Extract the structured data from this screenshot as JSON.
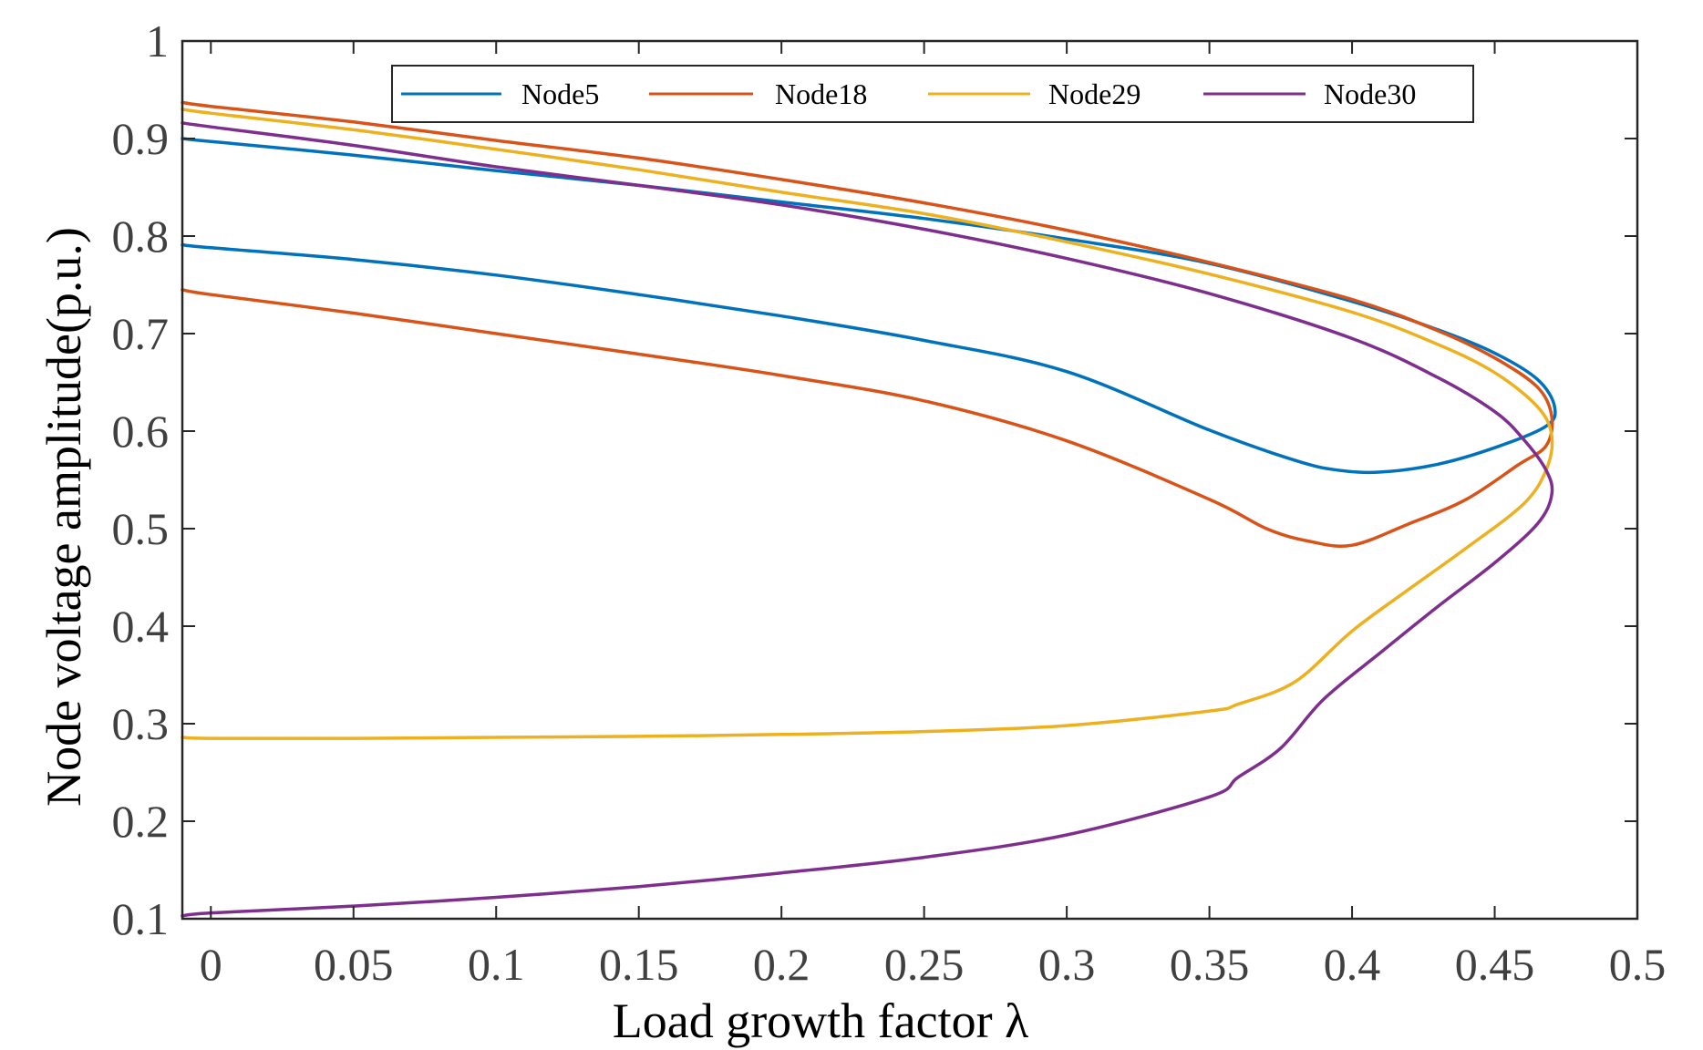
{
  "chart_data": {
    "type": "line",
    "title": "",
    "xlabel": "Load growth factor λ",
    "ylabel": "Node voltage amplitude(p.u.)",
    "xlim": [
      -0.01,
      0.5
    ],
    "ylim": [
      0.1,
      1.0
    ],
    "xticks": [
      0,
      0.05,
      0.1,
      0.15,
      0.2,
      0.25,
      0.3,
      0.35,
      0.4,
      0.45,
      0.5
    ],
    "xtick_labels": [
      "0",
      "0.05",
      "0.1",
      "0.15",
      "0.2",
      "0.25",
      "0.3",
      "0.35",
      "0.4",
      "0.45",
      "0.5"
    ],
    "yticks": [
      0.1,
      0.2,
      0.3,
      0.4,
      0.5,
      0.6,
      0.7,
      0.8,
      0.9,
      1.0
    ],
    "ytick_labels": [
      "0.1",
      "0.2",
      "0.3",
      "0.4",
      "0.5",
      "0.6",
      "0.7",
      "0.8",
      "0.9",
      "1"
    ],
    "grid": false,
    "legend_position": "top",
    "series": [
      {
        "name": "Node5",
        "color": "#0072BD",
        "points": [
          [
            -0.01,
            0.9
          ],
          [
            0.0,
            0.897
          ],
          [
            0.05,
            0.883
          ],
          [
            0.1,
            0.867
          ],
          [
            0.15,
            0.852
          ],
          [
            0.2,
            0.835
          ],
          [
            0.25,
            0.818
          ],
          [
            0.3,
            0.797
          ],
          [
            0.35,
            0.772
          ],
          [
            0.4,
            0.733
          ],
          [
            0.43,
            0.704
          ],
          [
            0.45,
            0.68
          ],
          [
            0.465,
            0.653
          ],
          [
            0.471,
            0.625
          ],
          [
            0.468,
            0.605
          ],
          [
            0.45,
            0.583
          ],
          [
            0.43,
            0.566
          ],
          [
            0.41,
            0.558
          ],
          [
            0.395,
            0.56
          ],
          [
            0.38,
            0.57
          ],
          [
            0.35,
            0.601
          ],
          [
            0.3,
            0.661
          ],
          [
            0.25,
            0.693
          ],
          [
            0.2,
            0.718
          ],
          [
            0.15,
            0.74
          ],
          [
            0.1,
            0.76
          ],
          [
            0.05,
            0.776
          ],
          [
            0.0,
            0.788
          ],
          [
            -0.01,
            0.791
          ]
        ]
      },
      {
        "name": "Node18",
        "color": "#D95319",
        "points": [
          [
            -0.01,
            0.937
          ],
          [
            0.0,
            0.933
          ],
          [
            0.05,
            0.917
          ],
          [
            0.1,
            0.898
          ],
          [
            0.15,
            0.88
          ],
          [
            0.2,
            0.858
          ],
          [
            0.25,
            0.834
          ],
          [
            0.3,
            0.806
          ],
          [
            0.35,
            0.773
          ],
          [
            0.4,
            0.735
          ],
          [
            0.43,
            0.703
          ],
          [
            0.45,
            0.675
          ],
          [
            0.465,
            0.645
          ],
          [
            0.47,
            0.615
          ],
          [
            0.468,
            0.585
          ],
          [
            0.458,
            0.565
          ],
          [
            0.44,
            0.53
          ],
          [
            0.42,
            0.505
          ],
          [
            0.4,
            0.483
          ],
          [
            0.385,
            0.487
          ],
          [
            0.37,
            0.5
          ],
          [
            0.35,
            0.53
          ],
          [
            0.3,
            0.59
          ],
          [
            0.25,
            0.631
          ],
          [
            0.2,
            0.657
          ],
          [
            0.15,
            0.679
          ],
          [
            0.1,
            0.7
          ],
          [
            0.05,
            0.721
          ],
          [
            0.0,
            0.74
          ],
          [
            -0.01,
            0.745
          ]
        ]
      },
      {
        "name": "Node29",
        "color": "#EDB120",
        "points": [
          [
            -0.01,
            0.93
          ],
          [
            0.0,
            0.926
          ],
          [
            0.05,
            0.909
          ],
          [
            0.1,
            0.889
          ],
          [
            0.15,
            0.868
          ],
          [
            0.2,
            0.845
          ],
          [
            0.25,
            0.823
          ],
          [
            0.3,
            0.794
          ],
          [
            0.35,
            0.761
          ],
          [
            0.4,
            0.722
          ],
          [
            0.43,
            0.689
          ],
          [
            0.45,
            0.66
          ],
          [
            0.465,
            0.625
          ],
          [
            0.47,
            0.595
          ],
          [
            0.468,
            0.56
          ],
          [
            0.46,
            0.525
          ],
          [
            0.44,
            0.48
          ],
          [
            0.42,
            0.438
          ],
          [
            0.4,
            0.395
          ],
          [
            0.38,
            0.343
          ],
          [
            0.36,
            0.32
          ],
          [
            0.35,
            0.313
          ],
          [
            0.3,
            0.298
          ],
          [
            0.25,
            0.292
          ],
          [
            0.2,
            0.289
          ],
          [
            0.15,
            0.287
          ],
          [
            0.1,
            0.286
          ],
          [
            0.05,
            0.285
          ],
          [
            0.0,
            0.285
          ],
          [
            -0.01,
            0.286
          ]
        ]
      },
      {
        "name": "Node30",
        "color": "#7E2F8E",
        "points": [
          [
            -0.01,
            0.916
          ],
          [
            0.0,
            0.912
          ],
          [
            0.05,
            0.893
          ],
          [
            0.1,
            0.871
          ],
          [
            0.15,
            0.852
          ],
          [
            0.2,
            0.832
          ],
          [
            0.25,
            0.807
          ],
          [
            0.3,
            0.777
          ],
          [
            0.35,
            0.741
          ],
          [
            0.4,
            0.695
          ],
          [
            0.43,
            0.655
          ],
          [
            0.45,
            0.62
          ],
          [
            0.46,
            0.592
          ],
          [
            0.468,
            0.56
          ],
          [
            0.47,
            0.535
          ],
          [
            0.465,
            0.505
          ],
          [
            0.45,
            0.465
          ],
          [
            0.43,
            0.42
          ],
          [
            0.41,
            0.373
          ],
          [
            0.39,
            0.325
          ],
          [
            0.375,
            0.275
          ],
          [
            0.36,
            0.245
          ],
          [
            0.35,
            0.225
          ],
          [
            0.3,
            0.186
          ],
          [
            0.25,
            0.163
          ],
          [
            0.2,
            0.147
          ],
          [
            0.15,
            0.133
          ],
          [
            0.1,
            0.122
          ],
          [
            0.05,
            0.113
          ],
          [
            0.0,
            0.106
          ],
          [
            -0.01,
            0.103
          ]
        ]
      }
    ]
  }
}
